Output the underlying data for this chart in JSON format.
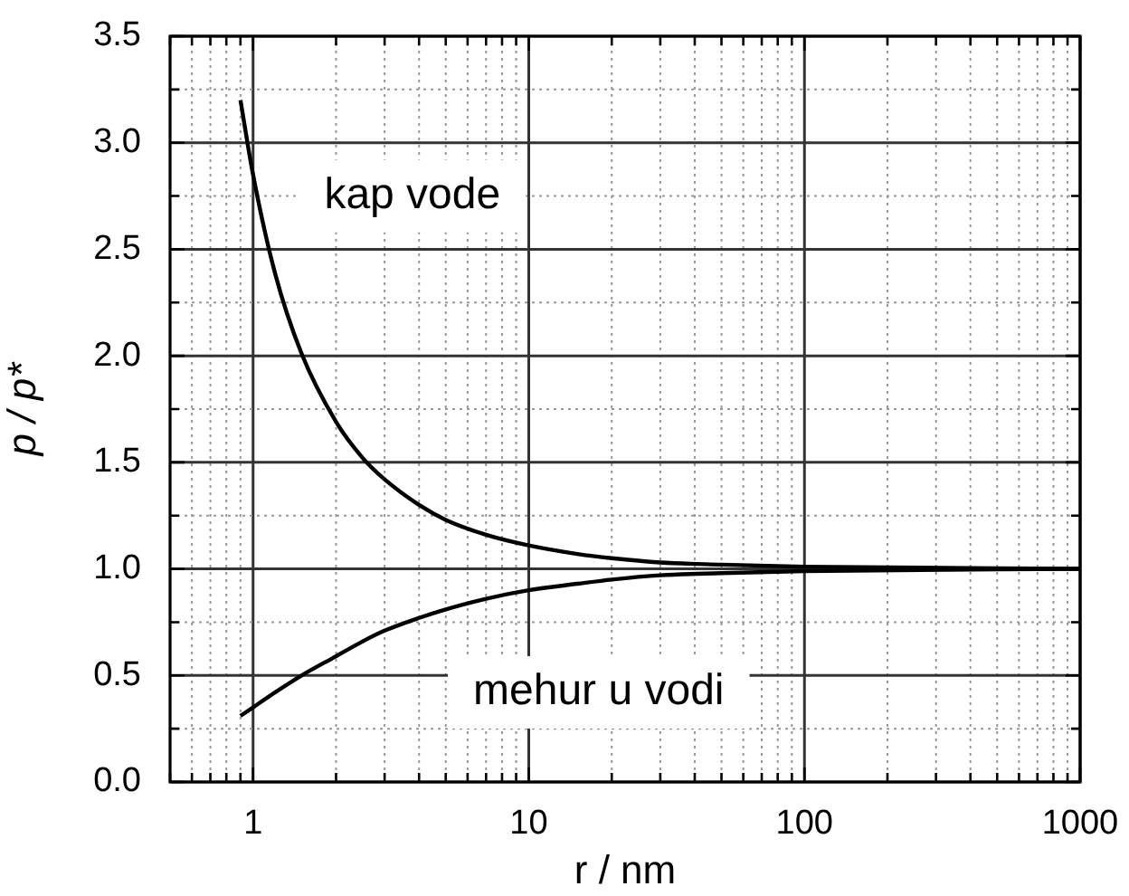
{
  "chart_data": {
    "type": "line",
    "xlabel": "r / nm",
    "ylabel": "p / p*",
    "log": "x",
    "xlim": [
      0.5,
      1000
    ],
    "xticks": [
      {
        "value": 0.5,
        "label": null
      },
      {
        "value": 0.6,
        "label": null
      },
      {
        "value": 0.7,
        "label": null
      },
      {
        "value": 0.8,
        "label": null
      },
      {
        "value": 0.9,
        "label": null
      },
      1,
      {
        "value": 2,
        "label": null
      },
      {
        "value": 3,
        "label": null
      },
      {
        "value": 4,
        "label": null
      },
      {
        "value": 5,
        "label": null
      },
      {
        "value": 6,
        "label": null
      },
      {
        "value": 7,
        "label": null
      },
      {
        "value": 8,
        "label": null
      },
      {
        "value": 9,
        "label": null
      },
      10,
      {
        "value": 20,
        "label": null
      },
      {
        "value": 30,
        "label": null
      },
      {
        "value": 40,
        "label": null
      },
      {
        "value": 50,
        "label": null
      },
      {
        "value": 60,
        "label": null
      },
      {
        "value": 70,
        "label": null
      },
      {
        "value": 80,
        "label": null
      },
      {
        "value": 90,
        "label": null
      },
      100,
      {
        "value": 200,
        "label": null
      },
      {
        "value": 300,
        "label": null
      },
      {
        "value": 400,
        "label": null
      },
      {
        "value": 500,
        "label": null
      },
      {
        "value": 600,
        "label": null
      },
      {
        "value": 700,
        "label": null
      },
      {
        "value": 800,
        "label": null
      },
      {
        "value": 900,
        "label": null
      },
      1000
    ],
    "ylim": [
      0,
      3.5
    ],
    "yticks": [
      {
        "value": 0,
        "label": "0.0"
      },
      {
        "value": 0.25,
        "label": null
      },
      {
        "value": 0.5,
        "label": "0.5"
      },
      {
        "value": 0.75,
        "label": null
      },
      {
        "value": 1,
        "label": "1.0"
      },
      {
        "value": 1.25,
        "label": null
      },
      {
        "value": 1.5,
        "label": "1.5"
      },
      {
        "value": 1.75,
        "label": null
      },
      {
        "value": 2,
        "label": "2.0"
      },
      {
        "value": 2.25,
        "label": null
      },
      {
        "value": 2.5,
        "label": "2.5"
      },
      {
        "value": 2.75,
        "label": null
      },
      {
        "value": 3,
        "label": "3.0"
      },
      {
        "value": 3.25,
        "label": null
      },
      {
        "value": 3.5,
        "label": "3.5"
      }
    ],
    "grid": true,
    "legend": false,
    "marker": "none",
    "line_style": "solid",
    "x": [
      0.9,
      1,
      1.2,
      1.5,
      2,
      2.5,
      3,
      4,
      5,
      7,
      10,
      15,
      20,
      30,
      50,
      100,
      1000
    ],
    "series": [
      {
        "name": "kap vode",
        "color": "#000000",
        "values": [
          3.2,
          2.85,
          2.39,
          2.01,
          1.69,
          1.52,
          1.42,
          1.3,
          1.23,
          1.16,
          1.11,
          1.07,
          1.05,
          1.03,
          1.02,
          1.01,
          1.0
        ]
      },
      {
        "name": "mehur u vodi",
        "color": "#000000",
        "values": [
          0.31,
          0.35,
          0.42,
          0.5,
          0.59,
          0.66,
          0.71,
          0.77,
          0.81,
          0.86,
          0.9,
          0.93,
          0.95,
          0.97,
          0.98,
          0.99,
          1.0
        ]
      }
    ]
  }
}
